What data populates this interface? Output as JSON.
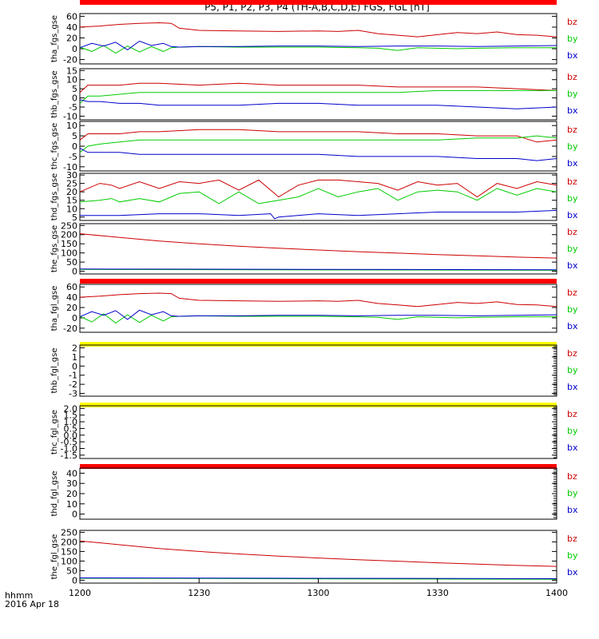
{
  "chart_data": {
    "type": "line",
    "title": "P5, P1, P2, P3, P4 (TH-A,B,C,D,E) FGS, FGL [nT]",
    "x_ticks": [
      "1200",
      "1230",
      "1300",
      "1330",
      "1400"
    ],
    "xlim": [
      "12:00",
      "14:00"
    ],
    "time_label_top": "hhmm",
    "time_label_bottom": "2016 Apr 18",
    "colors": {
      "bz": "#cc0000",
      "by": "#00cc00",
      "bx": "#0000cc",
      "bar_red": "#ff0000",
      "bar_yellow": "#ffff00"
    },
    "panels": [
      {
        "ylabel": "tha_fgs_gse",
        "yticks": [
          "60",
          "40",
          "20",
          "0",
          "-20"
        ],
        "ylim": [
          -28,
          65
        ],
        "has_data": true,
        "legend": [
          "bz",
          "by",
          "bx"
        ],
        "bar_after": "red",
        "series": {
          "bz": {
            "x": [
              0,
              5,
              10,
              15,
              20,
              23,
              25,
              30,
              40,
              50,
              60,
              65,
              70,
              75,
              80,
              85,
              90,
              95,
              100,
              105,
              110,
              115,
              120
            ],
            "y": [
              40,
              42,
              45,
              47,
              48,
              47,
              38,
              34,
              33,
              32,
              33,
              32,
              34,
              28,
              25,
              22,
              26,
              30,
              28,
              31,
              26,
              25,
              22
            ]
          },
          "by": {
            "x": [
              0,
              3,
              6,
              9,
              12,
              15,
              18,
              21,
              23,
              25,
              30,
              40,
              50,
              60,
              70,
              75,
              80,
              85,
              90,
              95,
              100,
              110,
              120
            ],
            "y": [
              3,
              -5,
              6,
              -8,
              5,
              -6,
              4,
              -5,
              2,
              3,
              4,
              3,
              3,
              3,
              2,
              1,
              -3,
              2,
              1,
              0,
              1,
              2,
              2
            ]
          },
          "bx": {
            "x": [
              0,
              3,
              6,
              9,
              12,
              15,
              18,
              21,
              23,
              25,
              30,
              40,
              50,
              60,
              70,
              80,
              90,
              100,
              110,
              120
            ],
            "y": [
              2,
              10,
              5,
              12,
              -2,
              14,
              6,
              10,
              4,
              3,
              4,
              4,
              5,
              5,
              4,
              5,
              5,
              4,
              5,
              6
            ]
          }
        }
      },
      {
        "ylabel": "thb_fgs_gse",
        "yticks": [
          "15",
          "10",
          "5",
          "0",
          "-5",
          "-10"
        ],
        "ylim": [
          -12,
          16
        ],
        "has_data": true,
        "legend": [
          "bz",
          "by",
          "bx"
        ],
        "bar_after": "",
        "series": {
          "bz": {
            "x": [
              0,
              2,
              5,
              10,
              15,
              20,
              30,
              40,
              50,
              60,
              70,
              80,
              90,
              100,
              110,
              120
            ],
            "y": [
              3,
              7,
              7,
              7,
              8,
              8,
              7,
              8,
              7,
              7,
              7,
              6,
              6,
              6,
              5,
              4
            ]
          },
          "by": {
            "x": [
              0,
              2,
              5,
              10,
              15,
              20,
              30,
              40,
              50,
              60,
              70,
              80,
              90,
              100,
              110,
              120
            ],
            "y": [
              -3,
              1,
              1,
              2,
              3,
              3,
              3,
              3,
              3,
              3,
              3,
              3,
              4,
              4,
              4,
              4
            ]
          },
          "bx": {
            "x": [
              0,
              2,
              5,
              10,
              15,
              20,
              30,
              40,
              50,
              60,
              70,
              80,
              90,
              100,
              110,
              120
            ],
            "y": [
              -1,
              -2,
              -2,
              -3,
              -3,
              -4,
              -4,
              -4,
              -3,
              -3,
              -4,
              -4,
              -4,
              -5,
              -6,
              -5
            ]
          }
        }
      },
      {
        "ylabel": "thc_fgs_gse",
        "yticks": [
          "10",
          "5",
          "0",
          "-5",
          "-10"
        ],
        "ylim": [
          -12,
          12
        ],
        "has_data": true,
        "legend": [
          "bz",
          "by",
          "bx"
        ],
        "bar_after": "",
        "series": {
          "bz": {
            "x": [
              0,
              2,
              5,
              10,
              15,
              20,
              30,
              40,
              50,
              60,
              70,
              80,
              90,
              100,
              110,
              115,
              120
            ],
            "y": [
              3,
              6,
              6,
              6,
              7,
              7,
              8,
              8,
              7,
              7,
              7,
              6,
              6,
              5,
              5,
              2,
              3
            ]
          },
          "by": {
            "x": [
              0,
              2,
              5,
              10,
              15,
              20,
              30,
              40,
              50,
              60,
              70,
              80,
              90,
              100,
              110,
              115,
              120
            ],
            "y": [
              -3,
              0,
              1,
              2,
              3,
              3,
              3,
              3,
              3,
              3,
              3,
              3,
              3,
              4,
              4,
              5,
              4
            ]
          },
          "bx": {
            "x": [
              0,
              2,
              5,
              10,
              15,
              20,
              30,
              40,
              50,
              60,
              70,
              80,
              90,
              100,
              110,
              115,
              120
            ],
            "y": [
              -1,
              -3,
              -3,
              -3,
              -4,
              -4,
              -4,
              -4,
              -4,
              -4,
              -5,
              -5,
              -5,
              -6,
              -6,
              -7,
              -6
            ]
          }
        }
      },
      {
        "ylabel": "thd_fgs_gse",
        "yticks": [
          "30",
          "25",
          "20",
          "15",
          "10",
          "5"
        ],
        "ylim": [
          3,
          31
        ],
        "has_data": true,
        "legend": [
          "bz",
          "by",
          "bx"
        ],
        "bar_after": "",
        "series": {
          "bz": {
            "x": [
              0,
              5,
              8,
              10,
              15,
              20,
              25,
              30,
              35,
              40,
              45,
              50,
              55,
              60,
              65,
              70,
              75,
              80,
              85,
              90,
              95,
              100,
              105,
              110,
              115,
              120
            ],
            "y": [
              20,
              25,
              24,
              22,
              26,
              22,
              26,
              25,
              27,
              21,
              27,
              17,
              24,
              27,
              27,
              26,
              25,
              21,
              26,
              24,
              25,
              17,
              25,
              22,
              26,
              24
            ]
          },
          "by": {
            "x": [
              0,
              5,
              8,
              10,
              15,
              20,
              25,
              30,
              35,
              40,
              45,
              50,
              55,
              60,
              65,
              70,
              75,
              80,
              85,
              90,
              95,
              100,
              105,
              110,
              115,
              120
            ],
            "y": [
              14,
              15,
              16,
              14,
              16,
              14,
              19,
              20,
              13,
              20,
              13,
              15,
              17,
              22,
              17,
              20,
              22,
              15,
              20,
              21,
              20,
              15,
              22,
              18,
              22,
              20
            ]
          },
          "bx": {
            "x": [
              0,
              10,
              20,
              30,
              40,
              48,
              49,
              50,
              60,
              70,
              80,
              90,
              100,
              110,
              120
            ],
            "y": [
              6,
              6,
              7,
              7,
              6,
              7,
              4,
              5,
              7,
              6,
              7,
              8,
              8,
              8,
              9
            ]
          }
        }
      },
      {
        "ylabel": "the_fgs_gse",
        "yticks": [
          "250",
          "200",
          "150",
          "100",
          "50",
          "0"
        ],
        "ylim": [
          -15,
          260
        ],
        "has_data": true,
        "legend": [
          "bz",
          "by",
          "bx"
        ],
        "bar_after": "red",
        "series": {
          "bz": {
            "x": [
              0,
              10,
              20,
              30,
              40,
              50,
              60,
              70,
              80,
              90,
              100,
              110,
              120
            ],
            "y": [
              205,
              185,
              165,
              150,
              137,
              126,
              116,
              107,
              99,
              91,
              84,
              77,
              72
            ]
          },
          "by": {
            "x": [
              0,
              120
            ],
            "y": [
              10,
              5
            ]
          },
          "bx": {
            "x": [
              0,
              120
            ],
            "y": [
              12,
              8
            ]
          }
        }
      },
      {
        "ylabel": "tha_fgl_gse",
        "yticks": [
          "60",
          "40",
          "20",
          "0",
          "-20"
        ],
        "ylim": [
          -28,
          65
        ],
        "has_data": true,
        "legend": [
          "bz",
          "by",
          "bx"
        ],
        "bar_after": "yellow",
        "series": {
          "bz": {
            "x": [
              0,
              5,
              10,
              15,
              20,
              23,
              25,
              30,
              40,
              50,
              60,
              65,
              70,
              75,
              80,
              85,
              90,
              95,
              100,
              105,
              110,
              115,
              120
            ],
            "y": [
              40,
              42,
              45,
              47,
              48,
              47,
              38,
              34,
              33,
              32,
              33,
              32,
              34,
              28,
              25,
              22,
              26,
              30,
              28,
              31,
              26,
              25,
              22
            ]
          },
          "by": {
            "x": [
              0,
              3,
              6,
              9,
              12,
              15,
              18,
              21,
              23,
              25,
              30,
              40,
              50,
              60,
              70,
              75,
              80,
              85,
              90,
              95,
              100,
              110,
              120
            ],
            "y": [
              3,
              -8,
              8,
              -10,
              6,
              -9,
              5,
              -6,
              2,
              3,
              4,
              3,
              3,
              3,
              2,
              1,
              -3,
              2,
              1,
              0,
              1,
              2,
              2
            ]
          },
          "bx": {
            "x": [
              0,
              3,
              6,
              9,
              12,
              15,
              18,
              21,
              23,
              25,
              30,
              40,
              50,
              60,
              70,
              80,
              90,
              100,
              110,
              120
            ],
            "y": [
              2,
              12,
              5,
              14,
              -3,
              15,
              6,
              12,
              4,
              3,
              4,
              4,
              5,
              5,
              4,
              5,
              5,
              4,
              5,
              6
            ]
          }
        }
      },
      {
        "ylabel": "thb_fgl_gse",
        "yticks": [
          "2",
          "1",
          "0",
          "-1",
          "-2",
          "-3"
        ],
        "ylim": [
          -3.3,
          2.3
        ],
        "has_data": false,
        "legend": [
          "bz",
          "by",
          "bx"
        ],
        "bar_after": "yellow",
        "series": {}
      },
      {
        "ylabel": "thc_fgl_gse",
        "yticks": [
          "2.0",
          "1.5",
          "1.0",
          "0.5",
          "0.0",
          "-0.5",
          "-1.0",
          "-1.5"
        ],
        "ylim": [
          -1.75,
          2.2
        ],
        "has_data": false,
        "legend": [
          "bz",
          "by",
          "bx"
        ],
        "bar_after": "red",
        "series": {}
      },
      {
        "ylabel": "thd_fgl_gse",
        "yticks": [
          "40",
          "30",
          "20",
          "10",
          "0"
        ],
        "ylim": [
          -5,
          45
        ],
        "has_data": false,
        "legend": [
          "bz",
          "by",
          "bx"
        ],
        "bar_after": "",
        "series": {}
      },
      {
        "ylabel": "the_fgl_gse",
        "yticks": [
          "250",
          "200",
          "150",
          "100",
          "50",
          "0"
        ],
        "ylim": [
          -15,
          260
        ],
        "has_data": true,
        "legend": [
          "bz",
          "by",
          "bx"
        ],
        "bar_after": "",
        "series": {
          "bz": {
            "x": [
              0,
              10,
              20,
              30,
              40,
              50,
              60,
              70,
              80,
              90,
              100,
              110,
              120
            ],
            "y": [
              205,
              185,
              165,
              150,
              137,
              126,
              116,
              107,
              99,
              91,
              84,
              77,
              72
            ]
          },
          "by": {
            "x": [
              0,
              120
            ],
            "y": [
              10,
              5
            ]
          },
          "bx": {
            "x": [
              0,
              120
            ],
            "y": [
              12,
              8
            ]
          }
        }
      }
    ]
  }
}
